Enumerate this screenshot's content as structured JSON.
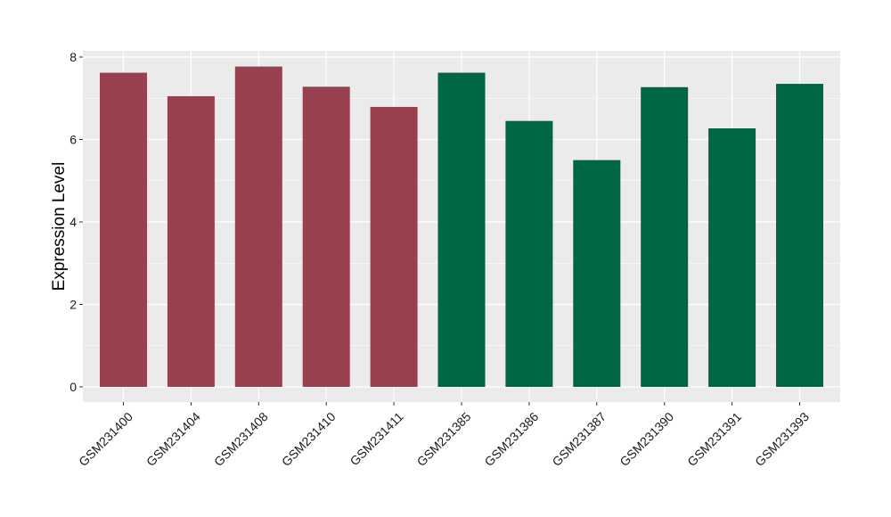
{
  "chart_data": {
    "type": "bar",
    "title": "",
    "xlabel": "",
    "ylabel": "Expression Level",
    "ylim": [
      0,
      8
    ],
    "yticks": [
      0,
      2,
      4,
      6,
      8
    ],
    "grid": true,
    "legend": "none",
    "categories": [
      "GSM231400",
      "GSM231404",
      "GSM231408",
      "GSM231410",
      "GSM231411",
      "GSM231385",
      "GSM231386",
      "GSM231387",
      "GSM231390",
      "GSM231391",
      "GSM231393"
    ],
    "values": [
      7.62,
      7.05,
      7.77,
      7.28,
      6.79,
      7.62,
      6.45,
      5.5,
      7.27,
      6.27,
      7.35
    ],
    "groups": [
      0,
      0,
      0,
      0,
      0,
      1,
      1,
      1,
      1,
      1,
      1
    ],
    "group_colors": [
      "#99404f",
      "#006643"
    ],
    "panel_background": "#ebebeb",
    "grid_color": "#ffffff"
  }
}
